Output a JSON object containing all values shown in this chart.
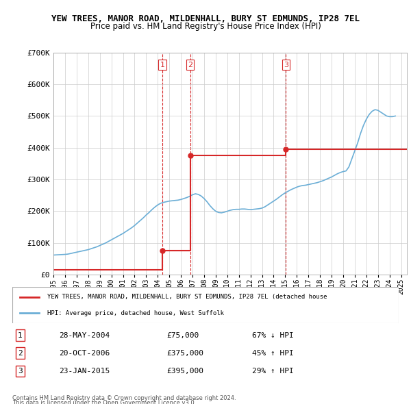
{
  "title": "YEW TREES, MANOR ROAD, MILDENHALL, BURY ST EDMUNDS, IP28 7EL",
  "subtitle": "Price paid vs. HM Land Registry's House Price Index (HPI)",
  "legend_line1": "YEW TREES, MANOR ROAD, MILDENHALL, BURY ST EDMUNDS, IP28 7EL (detached house",
  "legend_line2": "HPI: Average price, detached house, West Suffolk",
  "footer1": "Contains HM Land Registry data © Crown copyright and database right 2024.",
  "footer2": "This data is licensed under the Open Government Licence v3.0.",
  "transactions": [
    {
      "num": 1,
      "date": "28-MAY-2004",
      "price": "£75,000",
      "change": "67% ↓ HPI"
    },
    {
      "num": 2,
      "date": "20-OCT-2006",
      "price": "£375,000",
      "change": "45% ↑ HPI"
    },
    {
      "num": 3,
      "date": "23-JAN-2015",
      "price": "£395,000",
      "change": "29% ↑ HPI"
    }
  ],
  "transaction_dates": [
    2004.41,
    2006.8,
    2015.06
  ],
  "transaction_values": [
    75000,
    375000,
    395000
  ],
  "ylim": [
    0,
    700000
  ],
  "yticks": [
    0,
    100000,
    200000,
    300000,
    400000,
    500000,
    600000,
    700000
  ],
  "ytick_labels": [
    "£0",
    "£100K",
    "£200K",
    "£300K",
    "£400K",
    "£500K",
    "£600K",
    "£700K"
  ],
  "xlim_start": 1995.0,
  "xlim_end": 2025.5,
  "hpi_color": "#6baed6",
  "sale_color": "#d62728",
  "vline_color": "#d62728",
  "background_color": "#ffffff",
  "grid_color": "#cccccc",
  "hpi_data_x": [
    1995.0,
    1995.25,
    1995.5,
    1995.75,
    1996.0,
    1996.25,
    1996.5,
    1996.75,
    1997.0,
    1997.25,
    1997.5,
    1997.75,
    1998.0,
    1998.25,
    1998.5,
    1998.75,
    1999.0,
    1999.25,
    1999.5,
    1999.75,
    2000.0,
    2000.25,
    2000.5,
    2000.75,
    2001.0,
    2001.25,
    2001.5,
    2001.75,
    2002.0,
    2002.25,
    2002.5,
    2002.75,
    2003.0,
    2003.25,
    2003.5,
    2003.75,
    2004.0,
    2004.25,
    2004.5,
    2004.75,
    2005.0,
    2005.25,
    2005.5,
    2005.75,
    2006.0,
    2006.25,
    2006.5,
    2006.75,
    2007.0,
    2007.25,
    2007.5,
    2007.75,
    2008.0,
    2008.25,
    2008.5,
    2008.75,
    2009.0,
    2009.25,
    2009.5,
    2009.75,
    2010.0,
    2010.25,
    2010.5,
    2010.75,
    2011.0,
    2011.25,
    2011.5,
    2011.75,
    2012.0,
    2012.25,
    2012.5,
    2012.75,
    2013.0,
    2013.25,
    2013.5,
    2013.75,
    2014.0,
    2014.25,
    2014.5,
    2014.75,
    2015.0,
    2015.25,
    2015.5,
    2015.75,
    2016.0,
    2016.25,
    2016.5,
    2016.75,
    2017.0,
    2017.25,
    2017.5,
    2017.75,
    2018.0,
    2018.25,
    2018.5,
    2018.75,
    2019.0,
    2019.25,
    2019.5,
    2019.75,
    2020.0,
    2020.25,
    2020.5,
    2020.75,
    2021.0,
    2021.25,
    2021.5,
    2021.75,
    2022.0,
    2022.25,
    2022.5,
    2022.75,
    2023.0,
    2023.25,
    2023.5,
    2023.75,
    2024.0,
    2024.25,
    2024.5
  ],
  "hpi_data_y": [
    62000,
    62500,
    63000,
    63500,
    64000,
    65000,
    67000,
    69000,
    71000,
    73000,
    75000,
    77000,
    79000,
    82000,
    85000,
    88000,
    92000,
    96000,
    100000,
    105000,
    110000,
    115000,
    120000,
    125000,
    130000,
    136000,
    142000,
    148000,
    155000,
    163000,
    171000,
    179000,
    188000,
    196000,
    205000,
    213000,
    220000,
    225000,
    228000,
    230000,
    232000,
    233000,
    234000,
    235000,
    237000,
    240000,
    243000,
    247000,
    252000,
    255000,
    253000,
    248000,
    240000,
    230000,
    218000,
    208000,
    200000,
    196000,
    195000,
    197000,
    200000,
    203000,
    205000,
    206000,
    206000,
    207000,
    207000,
    206000,
    205000,
    206000,
    207000,
    208000,
    210000,
    214000,
    220000,
    226000,
    232000,
    238000,
    245000,
    252000,
    258000,
    263000,
    268000,
    272000,
    276000,
    279000,
    281000,
    282000,
    284000,
    286000,
    288000,
    290000,
    293000,
    296000,
    300000,
    304000,
    308000,
    313000,
    318000,
    322000,
    325000,
    327000,
    340000,
    365000,
    390000,
    415000,
    445000,
    470000,
    490000,
    505000,
    515000,
    520000,
    518000,
    512000,
    506000,
    500000,
    498000,
    498000,
    500000
  ]
}
